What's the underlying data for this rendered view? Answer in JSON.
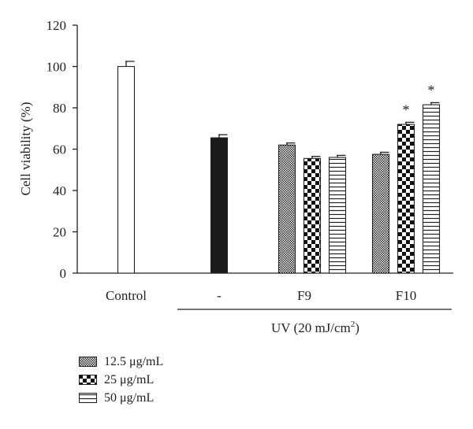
{
  "chart_data": {
    "type": "bar",
    "ylabel": "Cell viability (%)",
    "ylim": [
      0,
      120
    ],
    "yticks": [
      "0",
      "20",
      "40",
      "60",
      "80",
      "100",
      "120"
    ],
    "group_labels": [
      "Control",
      "-",
      "F9",
      "F10"
    ],
    "treatment_label": "UV (20 mJ/cm",
    "treatment_sup": "2",
    "treatment_close": ")",
    "significance_marker": "*",
    "legend": [
      "12.5 μg/mL",
      "25 μg/mL",
      "50 μg/mL"
    ],
    "bars": [
      {
        "group": "Control",
        "pattern": "white",
        "value": 100,
        "error": 2.5,
        "sig": false
      },
      {
        "group": "-",
        "pattern": "black",
        "value": 65.5,
        "error": 1.5,
        "sig": false
      },
      {
        "group": "F9",
        "pattern": "dotted",
        "value": 62,
        "error": 1.0,
        "sig": false
      },
      {
        "group": "F9",
        "pattern": "checker",
        "value": 55.5,
        "error": 1.0,
        "sig": false
      },
      {
        "group": "F9",
        "pattern": "hlines",
        "value": 56,
        "error": 1.0,
        "sig": false
      },
      {
        "group": "F10",
        "pattern": "dotted",
        "value": 57.5,
        "error": 1.0,
        "sig": false
      },
      {
        "group": "F10",
        "pattern": "checker",
        "value": 72,
        "error": 1.0,
        "sig": true
      },
      {
        "group": "F10",
        "pattern": "hlines",
        "value": 81.5,
        "error": 1.0,
        "sig": true
      }
    ]
  }
}
